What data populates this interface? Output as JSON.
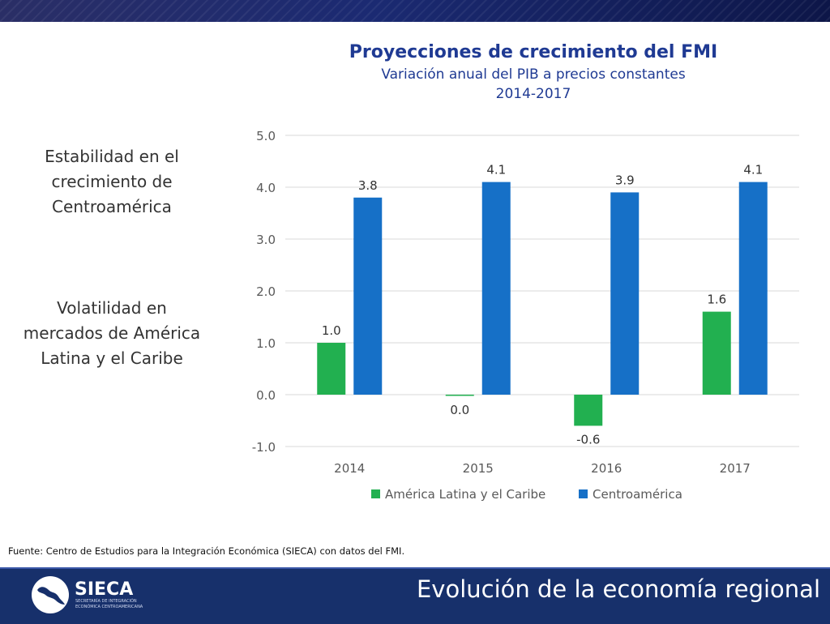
{
  "chart_data": {
    "type": "bar",
    "title": "Proyecciones de crecimiento del FMI",
    "subtitle": "Variación anual del PIB a precios constantes",
    "period": "2014-2017",
    "categories": [
      "2014",
      "2015",
      "2016",
      "2017"
    ],
    "series": [
      {
        "name": "América Latina y el Caribe",
        "values": [
          1.0,
          0.0,
          -0.6,
          1.6
        ],
        "labels": [
          "1.0",
          "0.0",
          "-0.6",
          "1.6"
        ],
        "color": "#22b050"
      },
      {
        "name": "Centroamérica",
        "values": [
          3.8,
          4.1,
          3.9,
          4.1
        ],
        "labels": [
          "3.8",
          "4.1",
          "3.9",
          "4.1"
        ],
        "color": "#1670c7"
      }
    ],
    "ylim": [
      -1.0,
      5.0
    ],
    "yticks": [
      "5.0",
      "4.0",
      "3.0",
      "2.0",
      "1.0",
      "0.0",
      "-1.0"
    ],
    "grid": true,
    "legend": "bottom"
  },
  "notes": {
    "stability": "Estabilidad en el crecimiento de Centroamérica",
    "volatility": "Volatilidad en mercados de América Latina y el Caribe"
  },
  "source": "Fuente: Centro de Estudios para la Integración Económica (SIECA) con datos del FMI.",
  "footer": {
    "title": "Evolución de la economía regional",
    "logo_name": "SIECA",
    "logo_sub1": "SECRETARÍA DE INTEGRACIÓN",
    "logo_sub2": "ECONÓMICA CENTROAMERICANA"
  },
  "colors": {
    "title": "#1f3a93",
    "footer": "#17306b",
    "banner": "#1b2a72"
  }
}
